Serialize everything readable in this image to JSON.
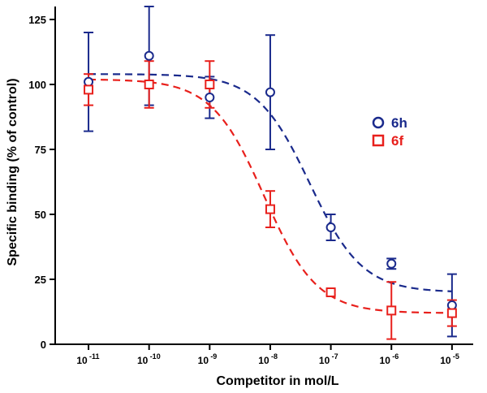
{
  "chart_data": {
    "type": "scatter",
    "xlabel": "Competitor in mol/L",
    "ylabel": "Specific binding (% of control)",
    "x_scale": "log10",
    "xlim_exp": [
      -11.55,
      -4.65
    ],
    "ylim": [
      0,
      130
    ],
    "x_ticks": [
      {
        "exp": -11,
        "base": "10",
        "sup": "-11"
      },
      {
        "exp": -10,
        "base": "10",
        "sup": "-10"
      },
      {
        "exp": -9,
        "base": "10",
        "sup": "-9"
      },
      {
        "exp": -8,
        "base": "10",
        "sup": "-8"
      },
      {
        "exp": -7,
        "base": "10",
        "sup": "-7"
      },
      {
        "exp": -6,
        "base": "10",
        "sup": "-6"
      },
      {
        "exp": -5,
        "base": "10",
        "sup": "-5"
      }
    ],
    "y_ticks": [
      {
        "value": 0,
        "label": "0"
      },
      {
        "value": 25,
        "label": "25"
      },
      {
        "value": 50,
        "label": "50"
      },
      {
        "value": 75,
        "label": "75"
      },
      {
        "value": 100,
        "label": "100"
      },
      {
        "value": 125,
        "label": "125"
      }
    ],
    "legend": {
      "position": "right"
    },
    "series": [
      {
        "name": "6h",
        "color": "#1a2a8c",
        "marker": "circle",
        "points": [
          {
            "x_exp": -11,
            "y": 101,
            "err_low": 82,
            "err_high": 120
          },
          {
            "x_exp": -10,
            "y": 111,
            "err_low": 92,
            "err_high": 130
          },
          {
            "x_exp": -9,
            "y": 95,
            "err_low": 87,
            "err_high": 103
          },
          {
            "x_exp": -8,
            "y": 97,
            "err_low": 75,
            "err_high": 119
          },
          {
            "x_exp": -7,
            "y": 45,
            "err_low": 40,
            "err_high": 50
          },
          {
            "x_exp": -6,
            "y": 31,
            "err_low": 29,
            "err_high": 33
          },
          {
            "x_exp": -5,
            "y": 15,
            "err_low": 3,
            "err_high": 27
          }
        ],
        "fit": {
          "top": 104,
          "bottom": 20,
          "log_ic50": -7.35,
          "hill": 1.0
        }
      },
      {
        "name": "6f",
        "color": "#e8201c",
        "marker": "square",
        "points": [
          {
            "x_exp": -11,
            "y": 98,
            "err_low": 92,
            "err_high": 104
          },
          {
            "x_exp": -10,
            "y": 100,
            "err_low": 91,
            "err_high": 109
          },
          {
            "x_exp": -9,
            "y": 100,
            "err_low": 91,
            "err_high": 109
          },
          {
            "x_exp": -8,
            "y": 52,
            "err_low": 45,
            "err_high": 59
          },
          {
            "x_exp": -7,
            "y": 20,
            "err_low": 19,
            "err_high": 21
          },
          {
            "x_exp": -6,
            "y": 13,
            "err_low": 2,
            "err_high": 24
          },
          {
            "x_exp": -5,
            "y": 12,
            "err_low": 7,
            "err_high": 17
          }
        ],
        "fit": {
          "top": 102,
          "bottom": 12,
          "log_ic50": -8.1,
          "hill": 1.0
        }
      }
    ]
  }
}
